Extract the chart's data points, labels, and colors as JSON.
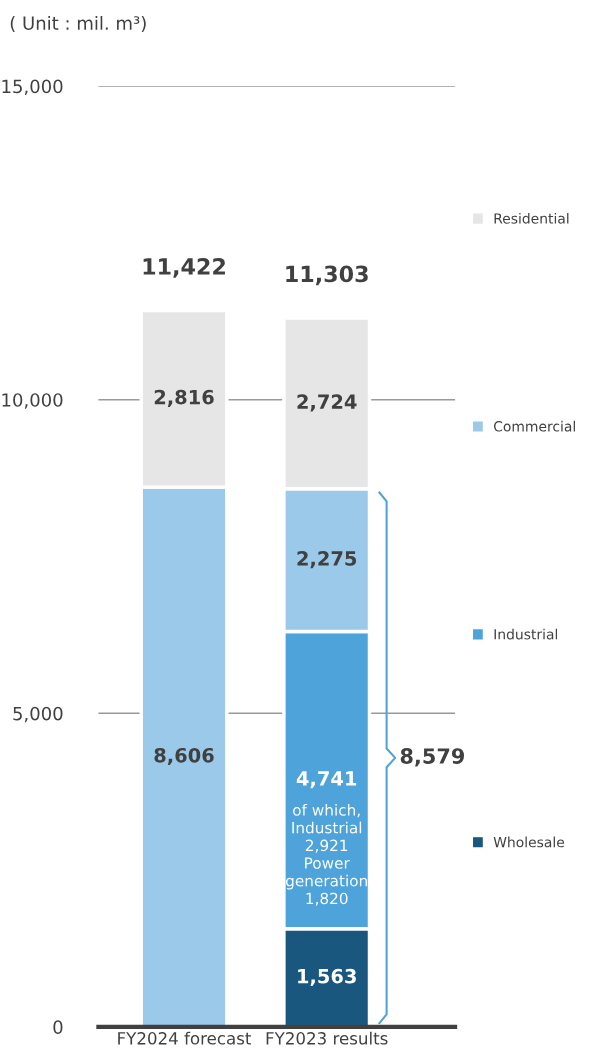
{
  "chart_data": {
    "type": "bar",
    "stacked": true,
    "title": "( Unit : mil. m³)",
    "categories": [
      "FY2024 forecast",
      "FY2023 results"
    ],
    "series": [
      {
        "color": "#9ac9e9",
        "values": [
          8606,
          null
        ],
        "value_labels": [
          "8,606",
          null
        ]
      },
      {
        "name": "Wholesale",
        "color": "#1a577e",
        "values": [
          null,
          1563
        ],
        "value_labels": [
          null,
          "1,563"
        ]
      },
      {
        "name": "Industrial",
        "color": "#4fa3db",
        "values": [
          null,
          4741
        ],
        "value_labels": [
          null,
          "4,741"
        ]
      },
      {
        "name": "Commercial",
        "color": "#9ac9e9",
        "values": [
          null,
          2275
        ],
        "value_labels": [
          null,
          "2,275"
        ]
      },
      {
        "name": "Residential",
        "color": "#e6e6e6",
        "values": [
          2816,
          2724
        ],
        "value_labels": [
          "2,816",
          "2,724"
        ]
      }
    ],
    "totals": [
      "11,422",
      "11,303"
    ],
    "ylim": [
      0,
      15000
    ],
    "yticks": [
      {
        "value": 0,
        "label": "0"
      },
      {
        "value": 5000,
        "label": "5,000"
      },
      {
        "value": 10000,
        "label": "10,000"
      },
      {
        "value": 15000,
        "label": "15,000"
      }
    ],
    "grid": "y",
    "legend": "right",
    "annotations": [
      "of which,\nIndustrial\n2,921\nPower\ngeneration\n1,820",
      "8,579"
    ]
  }
}
